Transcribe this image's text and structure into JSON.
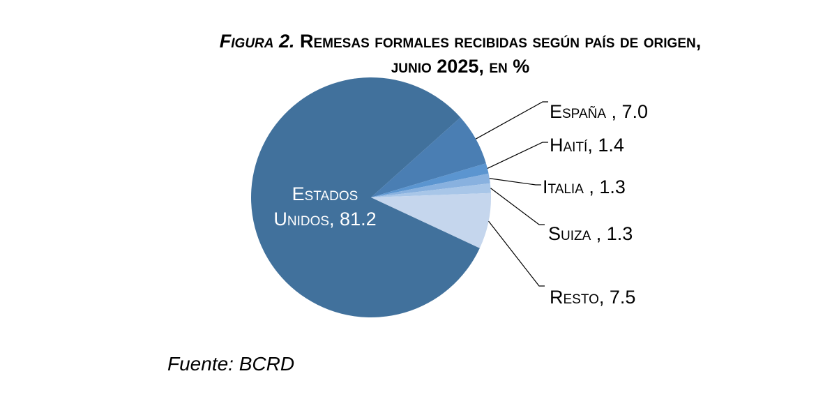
{
  "title": {
    "figure_label": "Figura 2.",
    "line1": "Remesas formales recibidas según país de origen,",
    "line2": "junio 2025, en %"
  },
  "chart_data": {
    "type": "pie",
    "title": "Figura 2. Remesas formales recibidas según país de origen, junio 2025, en %",
    "slices": [
      {
        "label": "Estados Unidos",
        "value": 81.2,
        "color": "#41719c"
      },
      {
        "label": "España",
        "value": 7.0,
        "color": "#4a7eb3"
      },
      {
        "label": "Haití",
        "value": 1.4,
        "color": "#5b95d0"
      },
      {
        "label": "Italia",
        "value": 1.3,
        "color": "#88b1df"
      },
      {
        "label": "Suiza",
        "value": 1.3,
        "color": "#a8c6e8"
      },
      {
        "label": "Resto",
        "value": 7.5,
        "color": "#c5d6ed"
      }
    ],
    "label_texts": [
      "Estados",
      "Unidos, 81.2",
      "España , 7.0",
      "Haití, 1.4",
      "Italia , 1.3",
      "Suiza , 1.3",
      "Resto, 7.5"
    ]
  },
  "source": "Fuente: BCRD"
}
